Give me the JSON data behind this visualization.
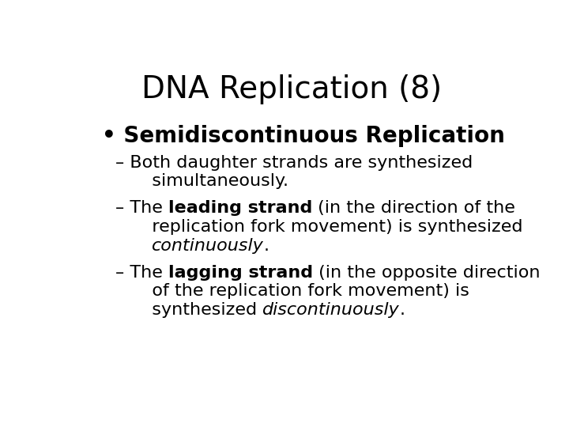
{
  "title": "DNA Replication (8)",
  "background_color": "#ffffff",
  "text_color": "#000000",
  "title_fontsize": 28,
  "bullet_text": "Semidiscontinuous Replication",
  "bullet_fontsize": 20,
  "item_fontsize": 16,
  "items": [
    {
      "parts": [
        {
          "text": "– Both daughter strands are synthesized\n    simultaneously.",
          "bold": false,
          "italic": false
        }
      ]
    },
    {
      "parts": [
        {
          "text": "– The ",
          "bold": false,
          "italic": false
        },
        {
          "text": "leading strand",
          "bold": true,
          "italic": false
        },
        {
          "text": " (in the direction of the\n    replication fork movement) is synthesized\n    ",
          "bold": false,
          "italic": false
        },
        {
          "text": "continuously",
          "bold": false,
          "italic": true
        },
        {
          "text": ".",
          "bold": false,
          "italic": false
        }
      ]
    },
    {
      "parts": [
        {
          "text": "– The ",
          "bold": false,
          "italic": false
        },
        {
          "text": "lagging strand",
          "bold": true,
          "italic": false
        },
        {
          "text": " (in the opposite direction\n    of the replication fork movement) is\n    synthesized ",
          "bold": false,
          "italic": false
        },
        {
          "text": "discontinuously",
          "bold": false,
          "italic": true
        },
        {
          "text": ".",
          "bold": false,
          "italic": false
        }
      ]
    }
  ]
}
